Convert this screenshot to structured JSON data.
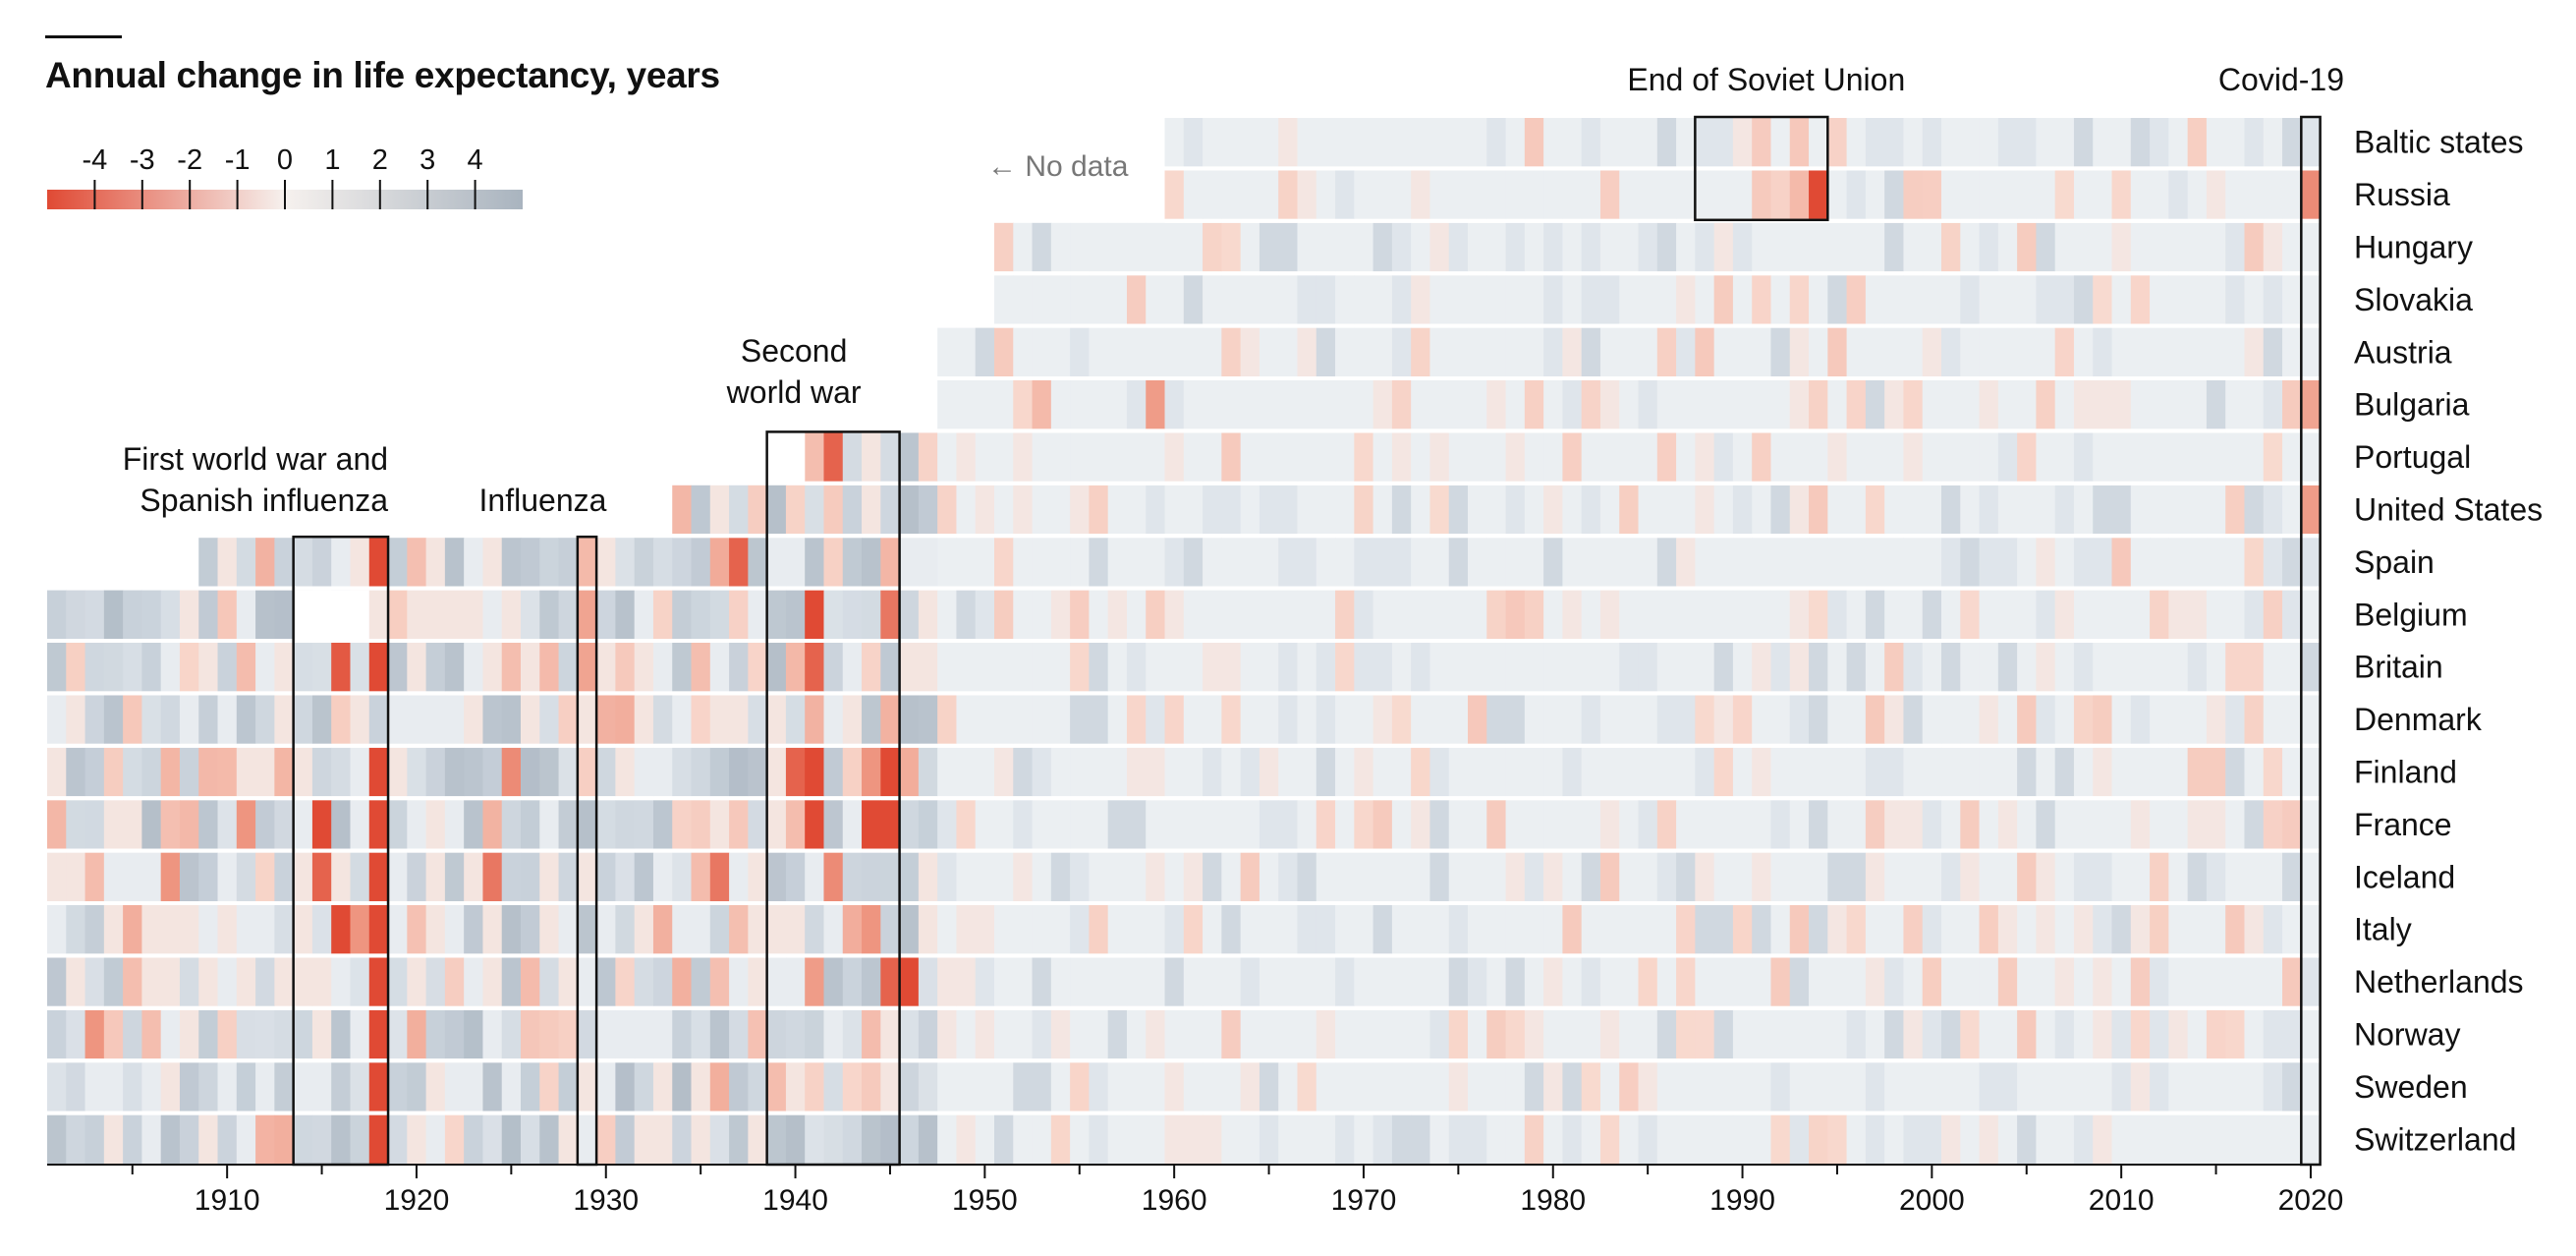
{
  "chart_data": {
    "type": "heatmap",
    "title": "Annual change in life expectancy, years",
    "colors": {
      "neg_strong": "#e04a34",
      "neg_mid": "#ee9580",
      "neg_light": "#f9ded4",
      "neutral": "#edf0f3",
      "pos_light": "#dde3e9",
      "pos_mid": "#c8d1da",
      "pos_strong": "#a9b4bf",
      "text": "#111111"
    },
    "legend": {
      "ticks": [
        "-4",
        "-3",
        "-2",
        "-1",
        "0",
        "1",
        "2",
        "3",
        "4"
      ],
      "range": [
        -5,
        5
      ]
    },
    "x_range": [
      1901,
      2021
    ],
    "x_ticks": [
      "1910",
      "1920",
      "1930",
      "1940",
      "1950",
      "1960",
      "1970",
      "1980",
      "1990",
      "2000",
      "2010",
      "2020"
    ],
    "x_tick_values": [
      1910,
      1920,
      1930,
      1940,
      1950,
      1960,
      1970,
      1980,
      1990,
      2000,
      2010,
      2020
    ],
    "rows": [
      {
        "name": "Baltic states",
        "start": 1960
      },
      {
        "name": "Russia",
        "start": 1960
      },
      {
        "name": "Hungary",
        "start": 1951
      },
      {
        "name": "Slovakia",
        "start": 1951
      },
      {
        "name": "Austria",
        "start": 1948
      },
      {
        "name": "Bulgaria",
        "start": 1948
      },
      {
        "name": "Portugal",
        "start": 1941
      },
      {
        "name": "United States",
        "start": 1934
      },
      {
        "name": "Spain",
        "start": 1909
      },
      {
        "name": "Belgium",
        "start": 1901
      },
      {
        "name": "Britain",
        "start": 1901
      },
      {
        "name": "Denmark",
        "start": 1901
      },
      {
        "name": "Finland",
        "start": 1901
      },
      {
        "name": "France",
        "start": 1901
      },
      {
        "name": "Iceland",
        "start": 1901
      },
      {
        "name": "Italy",
        "start": 1901
      },
      {
        "name": "Netherlands",
        "start": 1901
      },
      {
        "name": "Norway",
        "start": 1901
      },
      {
        "name": "Sweden",
        "start": 1901
      },
      {
        "name": "Switzerland",
        "start": 1901
      }
    ],
    "events": [
      {
        "label": [
          "First world war and",
          "Spanish influenza"
        ],
        "from": 1914,
        "to": 1918,
        "rows": [
          8,
          19
        ]
      },
      {
        "label": [
          "Influenza"
        ],
        "from": 1929,
        "to": 1929,
        "rows": [
          8,
          19
        ]
      },
      {
        "label": [
          "Second",
          "world war"
        ],
        "from": 1939,
        "to": 1945,
        "rows": [
          6,
          19
        ]
      },
      {
        "label": [
          "End of Soviet Union"
        ],
        "from": 1988,
        "to": 1994,
        "rows": [
          0,
          1
        ]
      },
      {
        "label": [
          "Covid-19"
        ],
        "from": 2020,
        "to": 2020,
        "rows": [
          0,
          19
        ]
      }
    ],
    "no_data_label": "← No data",
    "strong_cells": [
      {
        "row": 1,
        "year": 1994,
        "value": -4.5
      },
      {
        "row": 1,
        "year": 1993,
        "value": -2.0
      },
      {
        "row": 0,
        "year": 1993,
        "value": -1.6
      },
      {
        "row": 8,
        "year": 1937,
        "value": -4.0
      },
      {
        "row": 8,
        "year": 1918,
        "value": -4.5
      },
      {
        "row": 8,
        "year": 1936,
        "value": -2.4
      },
      {
        "row": 8,
        "year": 1912,
        "value": -2.2
      },
      {
        "row": 6,
        "year": 1942,
        "value": -4.0
      },
      {
        "row": 5,
        "year": 1959,
        "value": -2.8
      },
      {
        "row": 5,
        "year": 1953,
        "value": -2.0
      },
      {
        "row": 5,
        "year": 2020,
        "value": -2.6
      },
      {
        "row": 7,
        "year": 2020,
        "value": -2.8
      },
      {
        "row": 1,
        "year": 2020,
        "value": -3.2
      },
      {
        "row": 9,
        "year": 1941,
        "value": -4.5
      },
      {
        "row": 9,
        "year": 1945,
        "value": -3.6
      },
      {
        "row": 9,
        "year": 1929,
        "value": -2.6
      },
      {
        "row": 10,
        "year": 1918,
        "value": -4.5
      },
      {
        "row": 10,
        "year": 1916,
        "value": -4.2
      },
      {
        "row": 10,
        "year": 1941,
        "value": -4.0
      },
      {
        "row": 10,
        "year": 1929,
        "value": -2.6
      },
      {
        "row": 12,
        "year": 1918,
        "value": -5.0
      },
      {
        "row": 12,
        "year": 1941,
        "value": -4.5
      },
      {
        "row": 12,
        "year": 1940,
        "value": -4.0
      },
      {
        "row": 12,
        "year": 1945,
        "value": -4.8
      },
      {
        "row": 12,
        "year": 1944,
        "value": -3.0
      },
      {
        "row": 12,
        "year": 1925,
        "value": -3.2
      },
      {
        "row": 13,
        "year": 1915,
        "value": -4.5
      },
      {
        "row": 13,
        "year": 1918,
        "value": -4.5
      },
      {
        "row": 13,
        "year": 1941,
        "value": -4.8
      },
      {
        "row": 13,
        "year": 1944,
        "value": -5.0
      },
      {
        "row": 13,
        "year": 1945,
        "value": -5.0
      },
      {
        "row": 13,
        "year": 1911,
        "value": -3.0
      },
      {
        "row": 14,
        "year": 1918,
        "value": -4.5
      },
      {
        "row": 14,
        "year": 1915,
        "value": -4.0
      },
      {
        "row": 14,
        "year": 1907,
        "value": -3.0
      },
      {
        "row": 14,
        "year": 1924,
        "value": -3.6
      },
      {
        "row": 14,
        "year": 1936,
        "value": -3.6
      },
      {
        "row": 14,
        "year": 1942,
        "value": -3.2
      },
      {
        "row": 15,
        "year": 1916,
        "value": -4.8
      },
      {
        "row": 15,
        "year": 1918,
        "value": -5.0
      },
      {
        "row": 15,
        "year": 1917,
        "value": -3.0
      },
      {
        "row": 15,
        "year": 1944,
        "value": -3.0
      },
      {
        "row": 16,
        "year": 1918,
        "value": -5.0
      },
      {
        "row": 16,
        "year": 1946,
        "value": -5.0
      },
      {
        "row": 16,
        "year": 1945,
        "value": -4.0
      },
      {
        "row": 16,
        "year": 1941,
        "value": -2.8
      },
      {
        "row": 17,
        "year": 1918,
        "value": -5.0
      },
      {
        "row": 17,
        "year": 1903,
        "value": -3.0
      },
      {
        "row": 18,
        "year": 1918,
        "value": -5.0
      },
      {
        "row": 19,
        "year": 1918,
        "value": -5.0
      }
    ]
  }
}
